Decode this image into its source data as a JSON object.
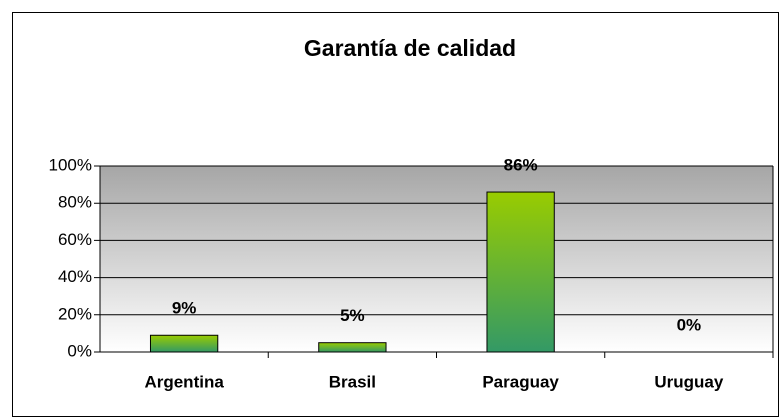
{
  "chart_data": {
    "type": "bar",
    "title": "Garantía de calidad",
    "categories": [
      "Argentina",
      "Brasil",
      "Paraguay",
      "Uruguay"
    ],
    "values": [
      9,
      5,
      86,
      0
    ],
    "value_labels": [
      "9%",
      "5%",
      "86%",
      "0%"
    ],
    "colors": [
      "#99cc00",
      "#339966"
    ],
    "ylim": [
      0,
      100
    ],
    "yticks": [
      {
        "value": 0,
        "label": "0%"
      },
      {
        "value": 20,
        "label": "20%"
      },
      {
        "value": 40,
        "label": "40%"
      },
      {
        "value": 60,
        "label": "60%"
      },
      {
        "value": 80,
        "label": "80%"
      },
      {
        "value": 100,
        "label": "100%"
      }
    ],
    "grid": true
  }
}
